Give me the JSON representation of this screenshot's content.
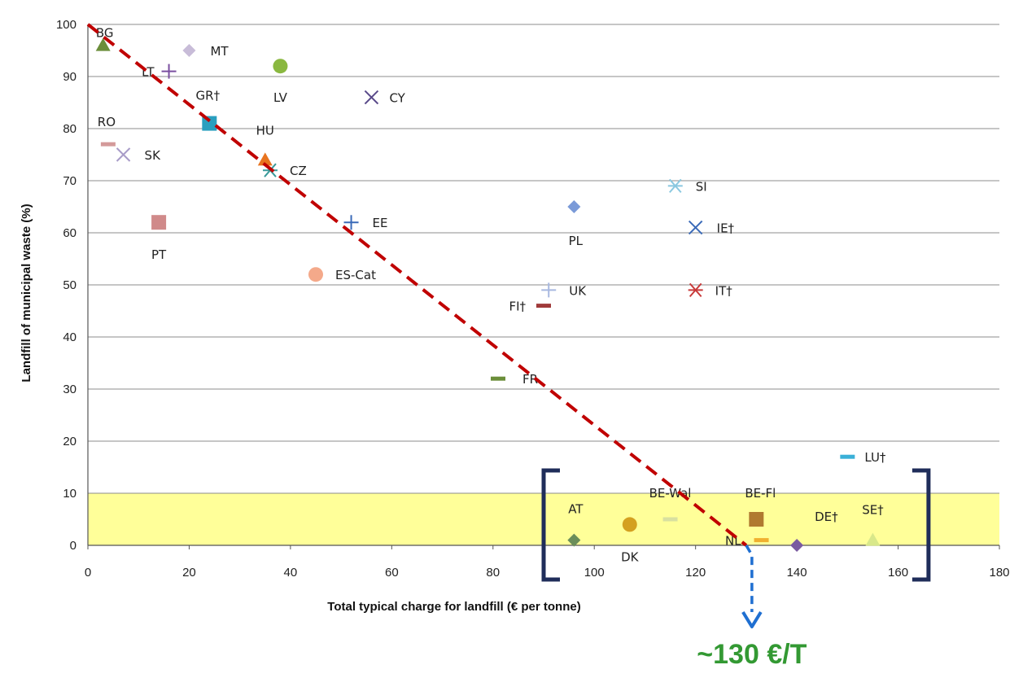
{
  "chart_data": {
    "type": "scatter",
    "title": "",
    "xlabel": "Total typical charge for landfill (€ per tonne)",
    "ylabel": "Landfill of municipal waste (%)",
    "xlim": [
      0,
      180
    ],
    "ylim": [
      0,
      100
    ],
    "xticks": [
      0,
      20,
      40,
      60,
      80,
      100,
      120,
      140,
      160,
      180
    ],
    "yticks": [
      0,
      10,
      20,
      30,
      40,
      50,
      60,
      70,
      80,
      90,
      100
    ],
    "grid": "horizontal",
    "highlight_band": {
      "y": [
        0,
        10
      ],
      "color": "#ffff99"
    },
    "trend_line": {
      "from": [
        0,
        100
      ],
      "to": [
        130,
        0
      ],
      "color": "#c00000",
      "style": "dashed"
    },
    "annotation": {
      "text": "~130 €/T",
      "x": 130,
      "color": "#339933",
      "arrow_color": "#1f6fd1"
    },
    "bracket": {
      "x": [
        90,
        166
      ],
      "color": "#1f2d5a"
    },
    "points": [
      {
        "label": "BG",
        "x": 3,
        "y": 96,
        "marker": "triangle",
        "color": "#6b8e3a"
      },
      {
        "label": "MT",
        "x": 20,
        "y": 95,
        "marker": "diamond",
        "color": "#c8bcd8"
      },
      {
        "label": "LT",
        "x": 16,
        "y": 91,
        "marker": "plus",
        "color": "#7a4fa0"
      },
      {
        "label": "LV",
        "x": 38,
        "y": 92,
        "marker": "circle",
        "color": "#8ab840"
      },
      {
        "label": "GR†",
        "x": 24,
        "y": 81,
        "marker": "square",
        "color": "#2a9fbf"
      },
      {
        "label": "CY",
        "x": 56,
        "y": 86,
        "marker": "x",
        "color": "#5a4a8a"
      },
      {
        "label": "RO",
        "x": 4,
        "y": 77,
        "marker": "dash",
        "color": "#d49a9a"
      },
      {
        "label": "SK",
        "x": 7,
        "y": 75,
        "marker": "x",
        "color": "#a89cc8"
      },
      {
        "label": "HU",
        "x": 35,
        "y": 74,
        "marker": "triangle",
        "color": "#e8741f"
      },
      {
        "label": "CZ",
        "x": 36,
        "y": 72,
        "marker": "star",
        "color": "#3a9a9a"
      },
      {
        "label": "PT",
        "x": 14,
        "y": 62,
        "marker": "square",
        "color": "#d08a8a"
      },
      {
        "label": "EE",
        "x": 52,
        "y": 62,
        "marker": "plus",
        "color": "#3a6ab8"
      },
      {
        "label": "ES-Cat",
        "x": 45,
        "y": 52,
        "marker": "circle",
        "color": "#f4a98a"
      },
      {
        "label": "PL",
        "x": 96,
        "y": 65,
        "marker": "diamond",
        "color": "#7a9ad8"
      },
      {
        "label": "SI",
        "x": 116,
        "y": 69,
        "marker": "star",
        "color": "#8ac8e0"
      },
      {
        "label": "IE†",
        "x": 120,
        "y": 61,
        "marker": "x",
        "color": "#3a6ab8"
      },
      {
        "label": "UK",
        "x": 91,
        "y": 49,
        "marker": "plus",
        "color": "#a8b8e0"
      },
      {
        "label": "FI†",
        "x": 90,
        "y": 46,
        "marker": "dash",
        "color": "#a03a3a"
      },
      {
        "label": "IT†",
        "x": 120,
        "y": 49,
        "marker": "star",
        "color": "#c83a3a"
      },
      {
        "label": "FR",
        "x": 81,
        "y": 32,
        "marker": "dash",
        "color": "#6b8e3a"
      },
      {
        "label": "LU†",
        "x": 150,
        "y": 17,
        "marker": "dash",
        "color": "#3ab0d8"
      },
      {
        "label": "AT",
        "x": 96,
        "y": 1,
        "marker": "diamond",
        "color": "#6b8e5a"
      },
      {
        "label": "DK",
        "x": 107,
        "y": 4,
        "marker": "circle",
        "color": "#d4a020"
      },
      {
        "label": "BE-Wal",
        "x": 115,
        "y": 5,
        "marker": "dash",
        "color": "#d8e0a0"
      },
      {
        "label": "BE-Fl",
        "x": 132,
        "y": 5,
        "marker": "square",
        "color": "#b07a30"
      },
      {
        "label": "NL",
        "x": 133,
        "y": 1,
        "marker": "dash",
        "color": "#f0b030"
      },
      {
        "label": "DE†",
        "x": 140,
        "y": 0,
        "marker": "diamond",
        "color": "#7a5aa0"
      },
      {
        "label": "SE†",
        "x": 155,
        "y": 1,
        "marker": "triangle",
        "color": "#d8e88a"
      }
    ]
  }
}
